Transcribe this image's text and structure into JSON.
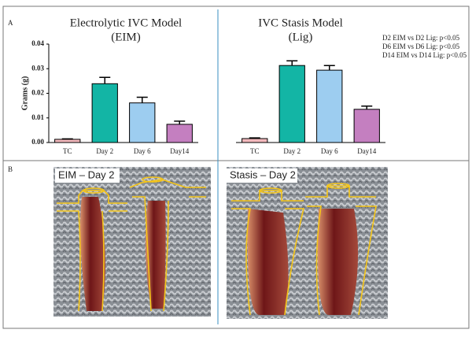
{
  "panels": {
    "a_label": "A",
    "b_label": "B",
    "photo_labels": [
      "EIM – Day 2",
      "Stasis – Day 2"
    ]
  },
  "chart_data": [
    {
      "type": "bar",
      "title": "Electrolytic IVC Model",
      "subtitle": "(EIM)",
      "y_label": "Grams (g)",
      "categories": [
        "TC",
        "Day 2",
        "Day 6",
        "Day14"
      ],
      "values": [
        0.0013,
        0.0239,
        0.0161,
        0.0074
      ],
      "errors": [
        0.0002,
        0.0026,
        0.0023,
        0.0013
      ],
      "colors": [
        "#f2b8bc",
        "#13b5a5",
        "#9dcdf0",
        "#c47fc0"
      ],
      "ylim": [
        0,
        0.04
      ],
      "yticks": [
        {
          "value": 0,
          "label": "0.00"
        },
        0.01,
        0.02,
        0.03,
        0.04
      ]
    },
    {
      "type": "bar",
      "title": "IVC Stasis Model",
      "subtitle": "(Lig)",
      "categories": [
        "TC",
        "Day 2",
        "Day 6",
        "Day14"
      ],
      "values": [
        0.0016,
        0.0313,
        0.0294,
        0.0135
      ],
      "errors": [
        0.0003,
        0.0019,
        0.0019,
        0.0013
      ],
      "colors": [
        "#f2b8bc",
        "#13b5a5",
        "#9dcdf0",
        "#c47fc0"
      ],
      "ylim": [
        0,
        0.04
      ],
      "annotations": [
        "D2  EIM vs D2  Lig: p<0.05",
        "D6  EIM vs D6  Lig: p<0.05",
        "D14 EIM vs D14 Lig: p<0.05"
      ]
    }
  ]
}
